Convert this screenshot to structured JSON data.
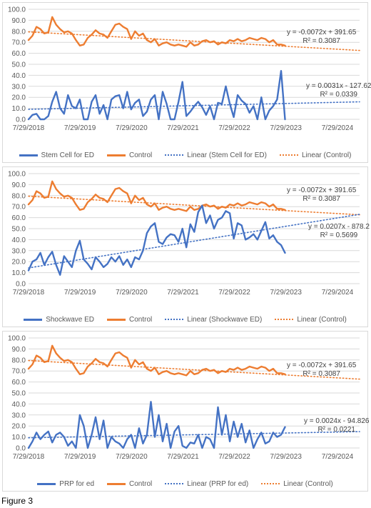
{
  "colors": {
    "primary": "#4472c4",
    "control": "#ed7d31",
    "grid": "#d9d9d9",
    "axis_text": "#595959"
  },
  "caption": "Figure 3",
  "chart_data": [
    {
      "type": "line",
      "ylim": [
        0,
        100
      ],
      "yticks": [
        "0.0",
        "10.0",
        "20.0",
        "30.0",
        "40.0",
        "50.0",
        "60.0",
        "70.0",
        "80.0",
        "90.0",
        "100.0"
      ],
      "xlim": [
        0,
        2349
      ],
      "xtick_days": [
        0,
        365,
        731,
        1096,
        1461,
        1826,
        2192
      ],
      "xtick_labels": [
        "7/29/2018",
        "7/29/2019",
        "7/29/2020",
        "7/29/2021",
        "7/29/2022",
        "7/29/2023",
        "7/29/2024"
      ],
      "series": [
        {
          "name": "Stem Cell for ED",
          "style": "solid-blue",
          "days": [
            0,
            28,
            56,
            84,
            112,
            140,
            168,
            196,
            224,
            252,
            280,
            308,
            336,
            364,
            392,
            420,
            448,
            476,
            504,
            532,
            560,
            588,
            616,
            644,
            672,
            700,
            728,
            756,
            784,
            812,
            840,
            868,
            896,
            924,
            952,
            980,
            1008,
            1036,
            1064,
            1092,
            1120,
            1148,
            1176,
            1204,
            1232,
            1260,
            1288,
            1316,
            1344,
            1372,
            1400,
            1428,
            1456,
            1484,
            1512,
            1540,
            1568,
            1596,
            1624,
            1652,
            1680,
            1708,
            1736,
            1764,
            1792,
            1820
          ],
          "values": [
            0,
            4,
            5,
            0,
            0,
            3,
            16,
            25,
            10,
            5,
            22,
            12,
            10,
            18,
            0,
            0,
            16,
            22,
            5,
            13,
            0,
            18,
            21,
            22,
            10,
            25,
            9,
            15,
            18,
            3,
            7,
            18,
            22,
            0,
            25,
            14,
            0,
            0,
            16,
            34,
            3,
            7,
            12,
            16,
            11,
            4,
            12,
            0,
            15,
            14,
            30,
            14,
            2,
            22,
            17,
            14,
            6,
            12,
            0,
            20,
            0,
            8,
            12,
            18,
            44,
            0
          ]
        },
        {
          "name": "Control",
          "style": "solid-orange",
          "days": [
            0,
            28,
            56,
            84,
            112,
            140,
            168,
            196,
            224,
            252,
            280,
            308,
            336,
            364,
            392,
            420,
            448,
            476,
            504,
            532,
            560,
            588,
            616,
            644,
            672,
            700,
            728,
            756,
            784,
            812,
            840,
            868,
            896,
            924,
            952,
            980,
            1008,
            1036,
            1064,
            1092,
            1120,
            1148,
            1176,
            1204,
            1232,
            1260,
            1288,
            1316,
            1344,
            1372,
            1400,
            1428,
            1456,
            1484,
            1512,
            1540,
            1568,
            1596,
            1624,
            1652,
            1680,
            1708,
            1736,
            1764,
            1792,
            1820
          ],
          "values": [
            72,
            76,
            84,
            82,
            78,
            79,
            93,
            86,
            82,
            79,
            80,
            78,
            72,
            67,
            68,
            74,
            77,
            81,
            78,
            77,
            74,
            80,
            86,
            87,
            84,
            82,
            73,
            80,
            76,
            78,
            72,
            70,
            73,
            67,
            69,
            70,
            68,
            67,
            68,
            67,
            66,
            70,
            67,
            68,
            71,
            72,
            70,
            71,
            68,
            70,
            69,
            72,
            71,
            73,
            71,
            72,
            74,
            73,
            72,
            74,
            73,
            70,
            72,
            68,
            68,
            67
          ]
        },
        {
          "name": "Linear (Stem Cell for ED)",
          "style": "dot-blue",
          "days": [
            0,
            2349
          ],
          "values": [
            9.1,
            15.9
          ]
        },
        {
          "name": "Linear (Control)",
          "style": "dot-orange",
          "days": [
            0,
            2349
          ],
          "values": [
            79.5,
            62.6
          ]
        }
      ],
      "annotations": [
        {
          "equation": "y = -0.0072x + 391.65",
          "r2": "R² = 0.3087"
        },
        {
          "equation": "y = 0.0031x - 127.62",
          "r2": "R² = 0.0339"
        }
      ]
    },
    {
      "type": "line",
      "ylim": [
        0,
        100
      ],
      "yticks": [
        "0.0",
        "10.0",
        "20.0",
        "30.0",
        "40.0",
        "50.0",
        "60.0",
        "70.0",
        "80.0",
        "90.0",
        "100.0"
      ],
      "xlim": [
        0,
        2349
      ],
      "xtick_days": [
        0,
        365,
        731,
        1096,
        1461,
        1826,
        2192
      ],
      "xtick_labels": [
        "7/29/2018",
        "7/29/2019",
        "7/29/2020",
        "7/29/2021",
        "7/29/2022",
        "7/29/2023",
        "7/29/2024"
      ],
      "series": [
        {
          "name": "Shockwave ED",
          "style": "solid-blue",
          "days": [
            0,
            28,
            56,
            84,
            112,
            140,
            168,
            196,
            224,
            252,
            280,
            308,
            336,
            364,
            392,
            420,
            448,
            476,
            504,
            532,
            560,
            588,
            616,
            644,
            672,
            700,
            728,
            756,
            784,
            812,
            840,
            868,
            896,
            924,
            952,
            980,
            1008,
            1036,
            1064,
            1092,
            1120,
            1148,
            1176,
            1204,
            1232,
            1260,
            1288,
            1316,
            1344,
            1372,
            1400,
            1428,
            1456,
            1484,
            1512,
            1540,
            1568,
            1596,
            1624,
            1652,
            1680,
            1708,
            1736,
            1764,
            1792,
            1820
          ],
          "values": [
            12,
            20,
            22,
            28,
            17,
            24,
            29,
            17,
            8,
            25,
            20,
            15,
            30,
            39,
            22,
            18,
            13,
            24,
            20,
            15,
            18,
            24,
            20,
            25,
            17,
            22,
            15,
            24,
            22,
            30,
            46,
            52,
            55,
            38,
            36,
            42,
            45,
            44,
            38,
            50,
            33,
            54,
            47,
            65,
            71,
            55,
            62,
            50,
            58,
            60,
            66,
            64,
            41,
            55,
            53,
            40,
            42,
            45,
            40,
            48,
            56,
            41,
            44,
            38,
            35,
            28
          ]
        },
        {
          "name": "Control",
          "style": "solid-orange",
          "days": [
            0,
            28,
            56,
            84,
            112,
            140,
            168,
            196,
            224,
            252,
            280,
            308,
            336,
            364,
            392,
            420,
            448,
            476,
            504,
            532,
            560,
            588,
            616,
            644,
            672,
            700,
            728,
            756,
            784,
            812,
            840,
            868,
            896,
            924,
            952,
            980,
            1008,
            1036,
            1064,
            1092,
            1120,
            1148,
            1176,
            1204,
            1232,
            1260,
            1288,
            1316,
            1344,
            1372,
            1400,
            1428,
            1456,
            1484,
            1512,
            1540,
            1568,
            1596,
            1624,
            1652,
            1680,
            1708,
            1736,
            1764,
            1792,
            1820
          ],
          "values": [
            72,
            76,
            84,
            82,
            78,
            79,
            93,
            86,
            82,
            79,
            80,
            78,
            72,
            67,
            68,
            74,
            77,
            81,
            78,
            77,
            74,
            80,
            86,
            87,
            84,
            82,
            73,
            80,
            76,
            78,
            72,
            70,
            73,
            67,
            69,
            70,
            68,
            67,
            68,
            67,
            66,
            70,
            67,
            68,
            71,
            72,
            70,
            71,
            68,
            70,
            69,
            72,
            71,
            73,
            71,
            72,
            74,
            73,
            72,
            74,
            73,
            70,
            72,
            68,
            68,
            67
          ]
        },
        {
          "name": "Linear (Shockwave ED)",
          "style": "dot-blue",
          "days": [
            0,
            2349
          ],
          "values": [
            14.3,
            63.0
          ]
        },
        {
          "name": "Linear (Control)",
          "style": "dot-orange",
          "days": [
            0,
            2349
          ],
          "values": [
            79.5,
            62.6
          ]
        }
      ],
      "annotations": [
        {
          "equation": "y = -0.0072x + 391.65",
          "r2": "R² = 0.3087"
        },
        {
          "equation": "y = 0.0207x - 878.2",
          "r2": "R² = 0.5699"
        }
      ]
    },
    {
      "type": "line",
      "ylim": [
        0,
        100
      ],
      "yticks": [
        "0.0",
        "10.0",
        "20.0",
        "30.0",
        "40.0",
        "50.0",
        "60.0",
        "70.0",
        "80.0",
        "90.0",
        "100.0"
      ],
      "xlim": [
        0,
        2349
      ],
      "xtick_days": [
        0,
        365,
        731,
        1096,
        1461,
        1826,
        2192
      ],
      "xtick_labels": [
        "7/29/2018",
        "7/29/2019",
        "7/29/2020",
        "7/29/2021",
        "7/29/2022",
        "7/29/2023",
        "7/29/2024"
      ],
      "series": [
        {
          "name": "PRP for ed",
          "style": "solid-blue",
          "days": [
            0,
            28,
            56,
            84,
            112,
            140,
            168,
            196,
            224,
            252,
            280,
            308,
            336,
            364,
            392,
            420,
            448,
            476,
            504,
            532,
            560,
            588,
            616,
            644,
            672,
            700,
            728,
            756,
            784,
            812,
            840,
            868,
            896,
            924,
            952,
            980,
            1008,
            1036,
            1064,
            1092,
            1120,
            1148,
            1176,
            1204,
            1232,
            1260,
            1288,
            1316,
            1344,
            1372,
            1400,
            1428,
            1456,
            1484,
            1512,
            1540,
            1568,
            1596,
            1624,
            1652,
            1680,
            1708,
            1736,
            1764,
            1792,
            1820
          ],
          "values": [
            0,
            6,
            14,
            8,
            12,
            15,
            5,
            12,
            14,
            10,
            2,
            6,
            0,
            30,
            20,
            0,
            12,
            28,
            8,
            25,
            0,
            10,
            6,
            4,
            0,
            8,
            12,
            0,
            18,
            4,
            12,
            42,
            10,
            30,
            6,
            22,
            0,
            15,
            20,
            2,
            0,
            5,
            4,
            12,
            0,
            10,
            8,
            0,
            37,
            12,
            30,
            6,
            24,
            10,
            22,
            5,
            16,
            0,
            8,
            14,
            4,
            6,
            14,
            10,
            12,
            19
          ]
        },
        {
          "name": "Control",
          "style": "solid-orange",
          "days": [
            0,
            28,
            56,
            84,
            112,
            140,
            168,
            196,
            224,
            252,
            280,
            308,
            336,
            364,
            392,
            420,
            448,
            476,
            504,
            532,
            560,
            588,
            616,
            644,
            672,
            700,
            728,
            756,
            784,
            812,
            840,
            868,
            896,
            924,
            952,
            980,
            1008,
            1036,
            1064,
            1092,
            1120,
            1148,
            1176,
            1204,
            1232,
            1260,
            1288,
            1316,
            1344,
            1372,
            1400,
            1428,
            1456,
            1484,
            1512,
            1540,
            1568,
            1596,
            1624,
            1652,
            1680,
            1708,
            1736,
            1764,
            1792,
            1820
          ],
          "values": [
            72,
            76,
            84,
            82,
            78,
            79,
            93,
            86,
            82,
            79,
            80,
            78,
            72,
            67,
            68,
            74,
            77,
            81,
            78,
            77,
            74,
            80,
            86,
            87,
            84,
            82,
            73,
            80,
            76,
            78,
            72,
            70,
            73,
            67,
            69,
            70,
            68,
            67,
            68,
            67,
            66,
            70,
            67,
            68,
            71,
            72,
            70,
            71,
            68,
            70,
            69,
            72,
            71,
            73,
            71,
            72,
            74,
            73,
            72,
            74,
            73,
            70,
            72,
            68,
            68,
            67
          ]
        },
        {
          "name": "Linear (PRP for ed)",
          "style": "dot-blue",
          "days": [
            0,
            2349
          ],
          "values": [
            9.3,
            14.9
          ]
        },
        {
          "name": "Linear (Control)",
          "style": "dot-orange",
          "days": [
            0,
            2349
          ],
          "values": [
            79.5,
            62.6
          ]
        }
      ],
      "annotations": [
        {
          "equation": "y = -0.0072x + 391.65",
          "r2": "R² = 0.3087"
        },
        {
          "equation": "y = 0.0024x - 94.826",
          "r2": "R² = 0.0221"
        }
      ]
    }
  ]
}
